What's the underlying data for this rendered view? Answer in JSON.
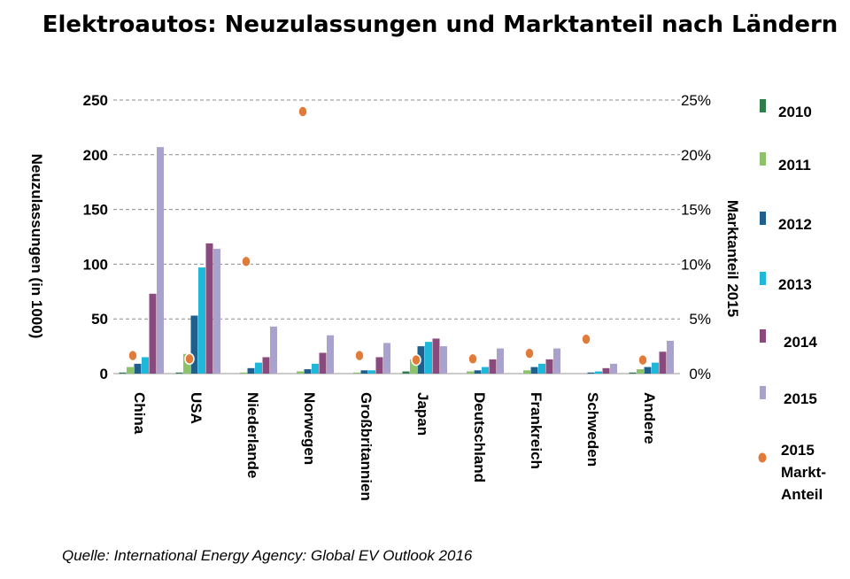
{
  "chart_data": {
    "type": "bar",
    "title": "Elektroautos: Neuzulassungen und Marktanteil nach Ländern",
    "ylabel": "Neuzulassungen (in 1000)",
    "y2label": "Marktanteil  2015",
    "source": "Quelle: International Energy Agency: Global EV Outlook 2016",
    "ylim": [
      0,
      250
    ],
    "yticks": [
      "0",
      "50",
      "100",
      "150",
      "200",
      "250"
    ],
    "y2lim": [
      0,
      25
    ],
    "y2ticks": [
      "0%",
      "5%",
      "10%",
      "15%",
      "20%",
      "25%"
    ],
    "grid": true,
    "legend_position": "right",
    "categories": [
      "China",
      "USA",
      "Niederlande",
      "Norwegen",
      "Großbritannien",
      "Japan",
      "Deutschland",
      "Frankreich",
      "Schweden",
      "Andere"
    ],
    "series": [
      {
        "name": "2010",
        "color": "#2e7d4a",
        "values": [
          1,
          1,
          0,
          0,
          0,
          2,
          0,
          0,
          0,
          1
        ]
      },
      {
        "name": "2011",
        "color": "#8cc26a",
        "values": [
          6,
          18,
          1,
          2,
          1,
          13,
          2,
          3,
          0,
          4
        ]
      },
      {
        "name": "2012",
        "color": "#1f5f8b",
        "values": [
          9,
          53,
          5,
          4,
          3,
          25,
          3,
          6,
          1,
          6
        ]
      },
      {
        "name": "2013",
        "color": "#1fb8d8",
        "values": [
          15,
          97,
          10,
          9,
          3,
          29,
          6,
          9,
          2,
          10
        ]
      },
      {
        "name": "2014",
        "color": "#8a4a7e",
        "values": [
          73,
          119,
          15,
          19,
          15,
          32,
          13,
          13,
          5,
          20
        ]
      },
      {
        "name": "2015",
        "color": "#a9a2cc",
        "values": [
          207,
          114,
          43,
          35,
          28,
          25,
          23,
          23,
          9,
          30
        ]
      }
    ],
    "marker_series": {
      "name": "2015\nMarkt-\nAnteil",
      "label_lines": [
        "2015",
        "Markt-",
        "Anteil"
      ],
      "color": "#e07b39",
      "axis": "right",
      "unit": "%",
      "values": [
        1.0,
        0.7,
        9.6,
        23.3,
        1.0,
        0.6,
        0.7,
        1.2,
        2.5,
        0.6
      ]
    }
  }
}
